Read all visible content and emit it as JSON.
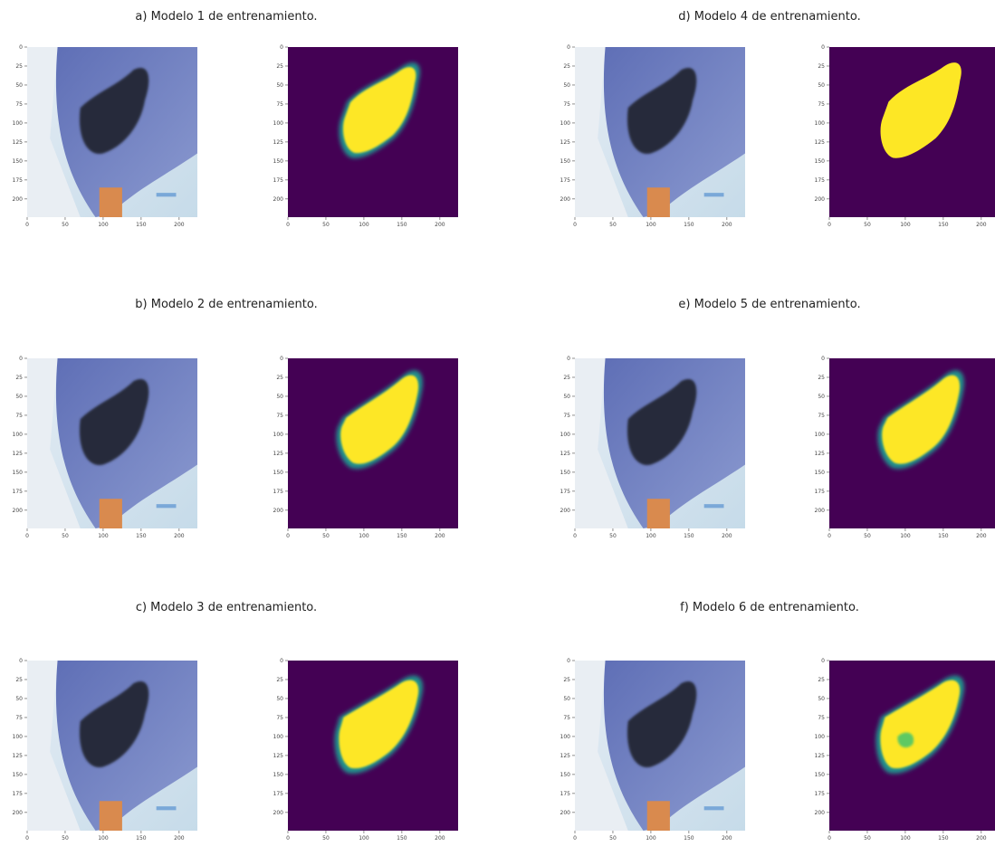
{
  "panels": [
    {
      "caption": "a) Modelo 1 de entrenamiento."
    },
    {
      "caption": "b) Modelo 2 de entrenamiento."
    },
    {
      "caption": "c) Modelo 3 de entrenamiento."
    },
    {
      "caption": "d) Modelo 4 de entrenamiento."
    },
    {
      "caption": "e) Modelo 5 de entrenamiento."
    },
    {
      "caption": "f) Modelo 6 de entrenamiento."
    }
  ],
  "image_axes": {
    "xticks": [
      0,
      50,
      100,
      150,
      200
    ],
    "yticks": [
      0,
      25,
      50,
      75,
      100,
      125,
      150,
      175,
      200
    ],
    "lim": [
      0,
      224
    ]
  }
}
